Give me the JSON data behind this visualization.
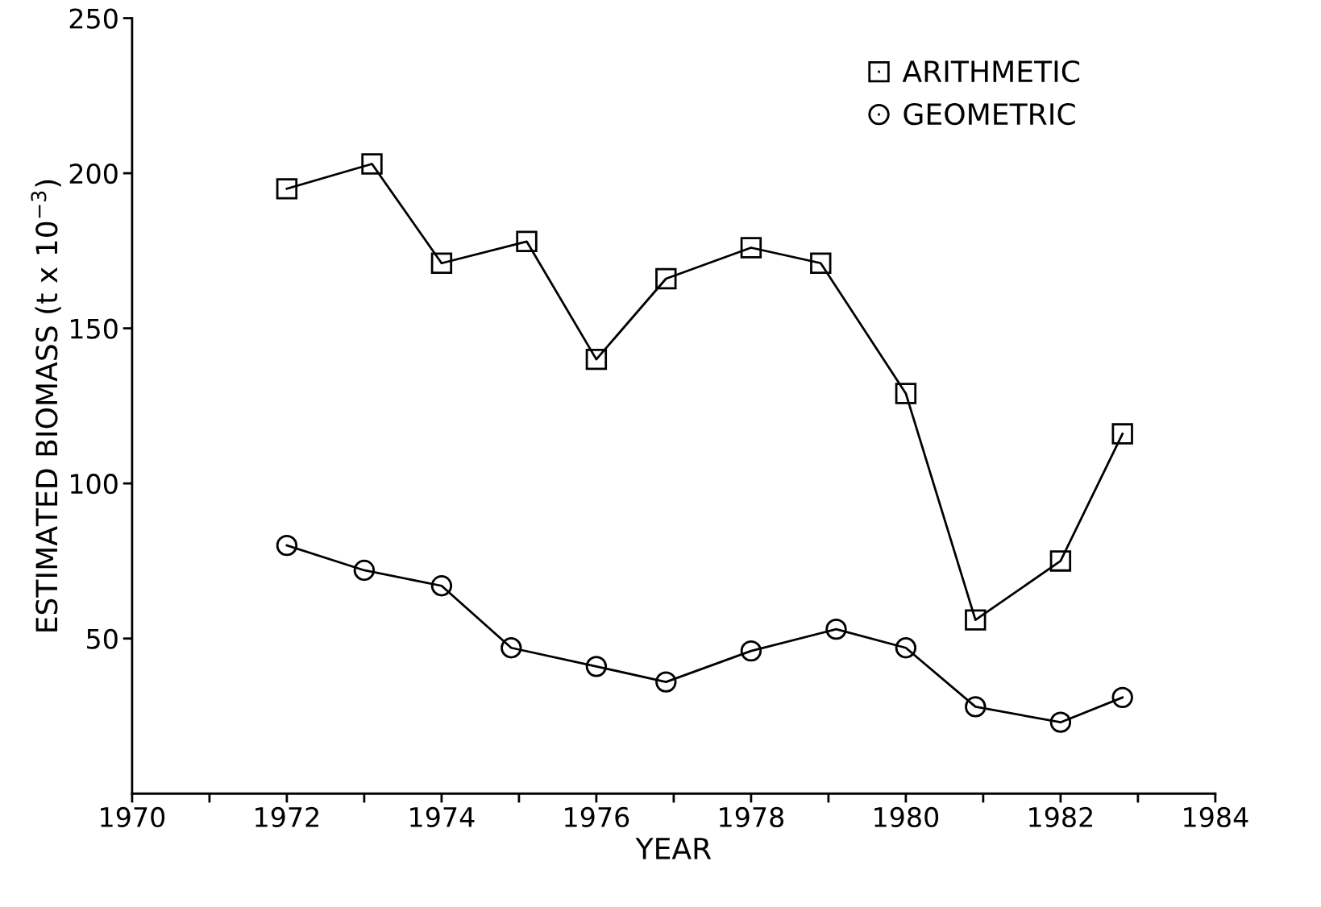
{
  "chart_data": {
    "type": "line",
    "xlabel": "YEAR",
    "ylabel": "ESTIMATED BIOMASS (t x 10$^{−3}$)",
    "xlim": [
      1970,
      1984
    ],
    "xticks": [
      1970,
      {
        "value": 1971,
        "label": null
      },
      1972,
      {
        "value": 1973,
        "label": null
      },
      1974,
      {
        "value": 1975,
        "label": null
      },
      1976,
      {
        "value": 1977,
        "label": null
      },
      1978,
      {
        "value": 1979,
        "label": null
      },
      1980,
      {
        "value": 1981,
        "label": null
      },
      1982,
      {
        "value": 1983,
        "label": null
      },
      1984
    ],
    "ylim": [
      0,
      250
    ],
    "yticks": [
      50,
      100,
      150,
      200,
      250
    ],
    "grid": false,
    "legend": "top right",
    "line_style": "solid",
    "series": [
      {
        "name": "ARITHMETIC",
        "color": "#000000",
        "marker": "square",
        "x": [
          1972,
          1973.1,
          1974,
          1975.1,
          1976,
          1976.9,
          1978,
          1978.9,
          1980,
          1980.9,
          1982,
          1982.8
        ],
        "values": [
          195,
          203,
          171,
          178,
          140,
          166,
          176,
          171,
          129,
          56,
          75,
          116
        ]
      },
      {
        "name": "GEOMETRIC",
        "color": "#000000",
        "marker": "circle",
        "x": [
          1972,
          1973,
          1974,
          1974.9,
          1976,
          1976.9,
          1978,
          1979.1,
          1980,
          1980.9,
          1982,
          1982.8
        ],
        "values": [
          80,
          72,
          67,
          47,
          41,
          36,
          46,
          53,
          47,
          28,
          23,
          31
        ]
      }
    ]
  }
}
